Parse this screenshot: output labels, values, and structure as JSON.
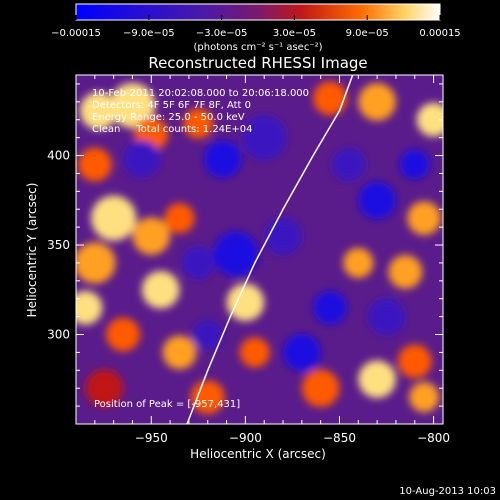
{
  "chart_data": {
    "type": "heatmap",
    "title": "Reconstructed RHESSI Image",
    "xlabel": "Heliocentric X (arcsec)",
    "ylabel": "Heliocentric Y (arcsec)",
    "xlim": [
      -990,
      -795
    ],
    "ylim": [
      250,
      445
    ],
    "x_ticks": [
      -950,
      -900,
      -850,
      -800
    ],
    "y_ticks": [
      300,
      350,
      400
    ],
    "x_tick_labels": [
      "−950",
      "−900",
      "−850",
      "−800"
    ],
    "y_tick_labels": [
      "300",
      "350",
      "400"
    ],
    "colorbar": {
      "min": -0.00015,
      "max": 0.00015,
      "ticks": [
        -0.00015,
        -9e-05,
        -3e-05,
        3e-05,
        9e-05,
        0.00015
      ],
      "tick_labels": [
        "−0.00015",
        "−9.0e−05",
        "−3.0e−05",
        "3.0e−05",
        "9.0e−05",
        "0.00015"
      ],
      "unit_label": "(photons cm⁻² s⁻¹ asec⁻²)",
      "colors": [
        "#0000ff",
        "#5a1aa8",
        "#6a1d86",
        "#c01818",
        "#ff6a00",
        "#ffd060",
        "#ffffff"
      ]
    },
    "annotations": [
      "10-Feb-2011 20:02:08.000 to 20:06:18.000",
      "Detectors: 4F 5F 6F 7F 8F, Att 0",
      "Energy Range: 25.0 - 50.0 keV",
      "Clean     Total counts: 1.24E+04"
    ],
    "peak_label": "Position of Peak = [-957,431]",
    "limb": [
      [
        -931,
        250
      ],
      [
        -920,
        280
      ],
      [
        -908,
        310
      ],
      [
        -895,
        340
      ],
      [
        -880,
        370
      ],
      [
        -864,
        400
      ],
      [
        -850,
        425
      ],
      [
        -843,
        445
      ]
    ],
    "blobs": [
      {
        "x": -978,
        "y": 425,
        "v": 1.0,
        "r": 10
      },
      {
        "x": -960,
        "y": 428,
        "v": 0.9,
        "r": 12
      },
      {
        "x": -950,
        "y": 412,
        "v": 0.6,
        "r": 9
      },
      {
        "x": -925,
        "y": 418,
        "v": 0.5,
        "r": 8
      },
      {
        "x": -980,
        "y": 395,
        "v": 0.5,
        "r": 9
      },
      {
        "x": -955,
        "y": 398,
        "v": -0.6,
        "r": 10
      },
      {
        "x": -912,
        "y": 398,
        "v": -0.8,
        "r": 10
      },
      {
        "x": -890,
        "y": 410,
        "v": -0.5,
        "r": 12
      },
      {
        "x": -970,
        "y": 365,
        "v": 0.9,
        "r": 12
      },
      {
        "x": -950,
        "y": 355,
        "v": 0.7,
        "r": 10
      },
      {
        "x": -980,
        "y": 340,
        "v": 0.85,
        "r": 11
      },
      {
        "x": -935,
        "y": 365,
        "v": 0.6,
        "r": 8
      },
      {
        "x": -945,
        "y": 325,
        "v": 1.0,
        "r": 10
      },
      {
        "x": -985,
        "y": 315,
        "v": 1.0,
        "r": 9
      },
      {
        "x": -965,
        "y": 300,
        "v": 0.6,
        "r": 9
      },
      {
        "x": -935,
        "y": 290,
        "v": 0.8,
        "r": 9
      },
      {
        "x": -975,
        "y": 270,
        "v": 0.4,
        "r": 10
      },
      {
        "x": -920,
        "y": 265,
        "v": 0.5,
        "r": 9
      },
      {
        "x": -900,
        "y": 318,
        "v": 0.95,
        "r": 10
      },
      {
        "x": -895,
        "y": 290,
        "v": 0.5,
        "r": 8
      },
      {
        "x": -905,
        "y": 345,
        "v": -0.9,
        "r": 12
      },
      {
        "x": -925,
        "y": 340,
        "v": -0.5,
        "r": 9
      },
      {
        "x": -880,
        "y": 355,
        "v": -0.6,
        "r": 10
      },
      {
        "x": -920,
        "y": 300,
        "v": -0.4,
        "r": 8
      },
      {
        "x": -870,
        "y": 290,
        "v": -0.7,
        "r": 10
      },
      {
        "x": -855,
        "y": 315,
        "v": -0.9,
        "r": 9
      },
      {
        "x": -840,
        "y": 340,
        "v": 0.7,
        "r": 8
      },
      {
        "x": -860,
        "y": 270,
        "v": 0.5,
        "r": 10
      },
      {
        "x": -830,
        "y": 275,
        "v": 0.9,
        "r": 10
      },
      {
        "x": -810,
        "y": 285,
        "v": 0.6,
        "r": 9
      },
      {
        "x": -805,
        "y": 265,
        "v": 0.8,
        "r": 8
      },
      {
        "x": -825,
        "y": 310,
        "v": -0.5,
        "r": 10
      },
      {
        "x": -815,
        "y": 335,
        "v": 0.7,
        "r": 9
      },
      {
        "x": -805,
        "y": 365,
        "v": 0.8,
        "r": 9
      },
      {
        "x": -830,
        "y": 375,
        "v": -0.7,
        "r": 10
      },
      {
        "x": -845,
        "y": 395,
        "v": -0.4,
        "r": 9
      },
      {
        "x": -810,
        "y": 395,
        "v": -1.0,
        "r": 8
      },
      {
        "x": -800,
        "y": 420,
        "v": 0.9,
        "r": 9
      },
      {
        "x": -830,
        "y": 430,
        "v": 0.8,
        "r": 10
      },
      {
        "x": -855,
        "y": 432,
        "v": 0.5,
        "r": 9
      }
    ]
  },
  "footer": {
    "date": "10-Aug-2013 10:03"
  }
}
